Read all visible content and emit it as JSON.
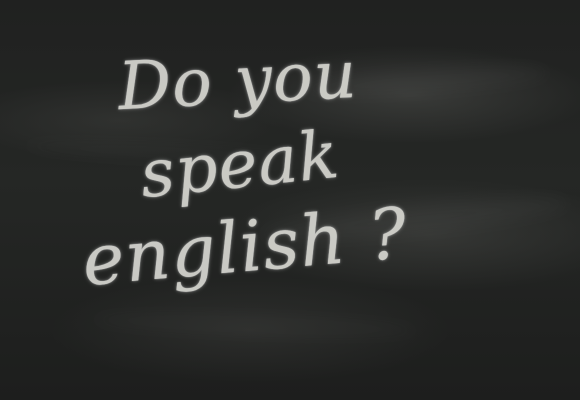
{
  "chalkboard": {
    "line1": "Do you",
    "line2": "speak",
    "line3": "english ?"
  }
}
